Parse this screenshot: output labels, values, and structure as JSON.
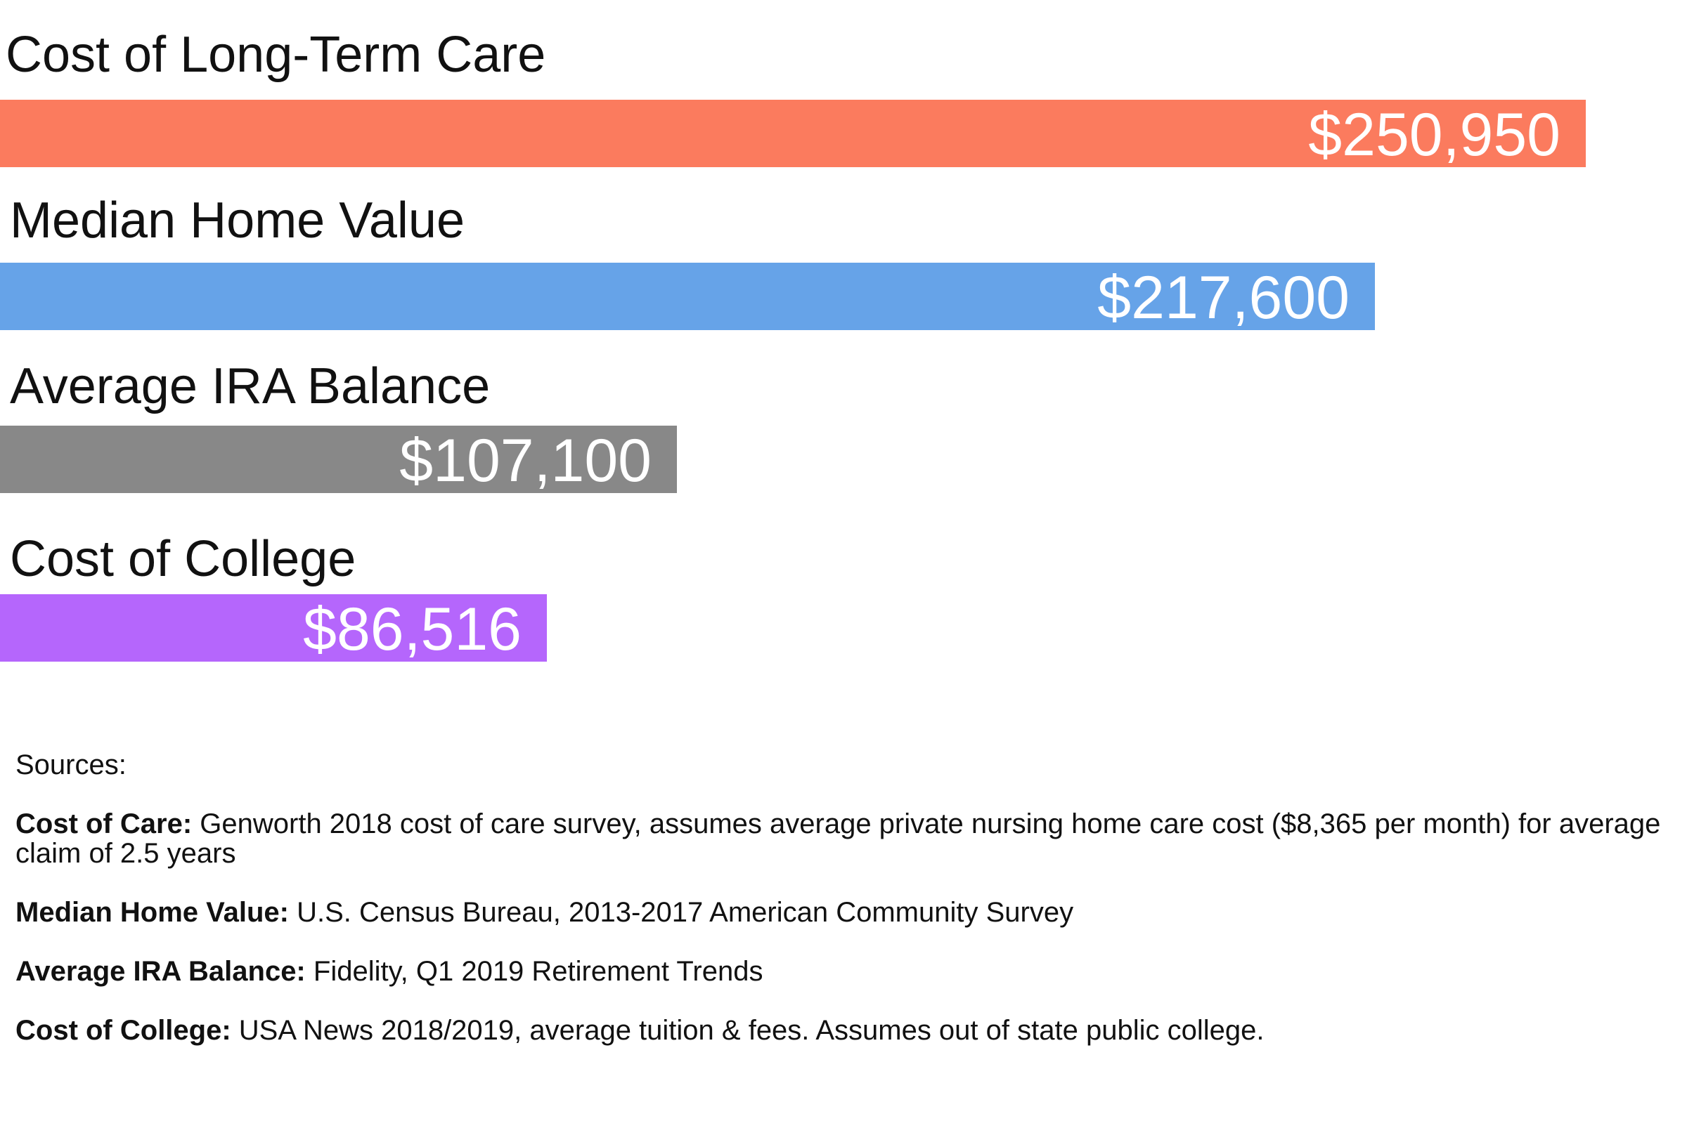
{
  "chart_data": {
    "type": "bar",
    "orientation": "horizontal",
    "categories": [
      "Cost of Long-Term Care",
      "Median Home Value",
      "Average IRA Balance",
      "Cost of College"
    ],
    "values": [
      250950,
      217600,
      107100,
      86516
    ],
    "value_labels": [
      "$250,950",
      "$217,600",
      "$107,100",
      "$86,516"
    ],
    "colors": [
      "#fb7b5e",
      "#66a3e8",
      "#888888",
      "#b566fc"
    ],
    "title": "",
    "xlabel": "",
    "ylabel": "",
    "grid": false
  },
  "sources": {
    "heading": "Sources:",
    "items": [
      {
        "label": "Cost of Care:",
        "text": "Genworth 2018 cost of care survey, assumes average private nursing home care cost ($8,365 per month) for average claim of 2.5 years"
      },
      {
        "label": "Median Home Value:",
        "text": "U.S. Census Bureau, 2013-2017 American Community Survey"
      },
      {
        "label": "Average IRA Balance:",
        "text": "Fidelity, Q1 2019 Retirement Trends"
      },
      {
        "label": "Cost of College:",
        "text": "USA News 2018/2019, average tuition & fees. Assumes out of state public college."
      }
    ]
  }
}
